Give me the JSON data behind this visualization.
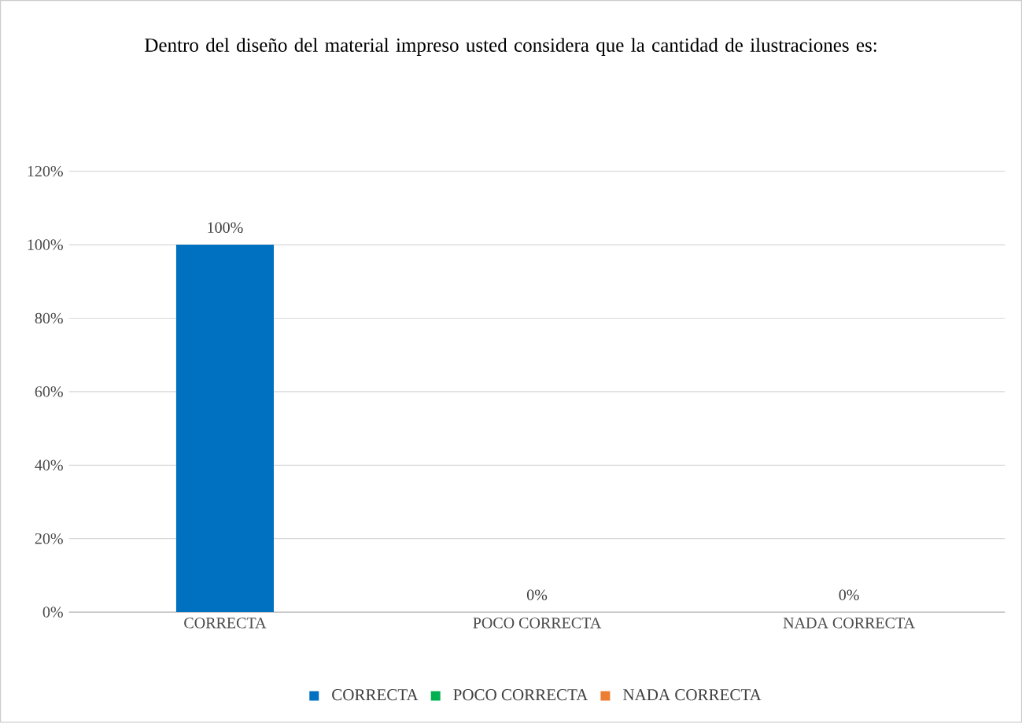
{
  "chart_data": {
    "type": "bar",
    "title": "Dentro del diseño del material impreso usted considera que la cantidad de ilustraciones es:",
    "categories": [
      "CORRECTA",
      "POCO CORRECTA",
      "NADA CORRECTA"
    ],
    "series": [
      {
        "name": "CORRECTA",
        "color": "#0070c0",
        "values": [
          100,
          null,
          null
        ],
        "value_labels": [
          "100%",
          null,
          null
        ]
      },
      {
        "name": "POCO CORRECTA",
        "color": "#00b050",
        "values": [
          null,
          0,
          null
        ],
        "value_labels": [
          null,
          "0%",
          null
        ]
      },
      {
        "name": "NADA CORRECTA",
        "color": "#ed7d31",
        "values": [
          null,
          null,
          0
        ],
        "value_labels": [
          null,
          null,
          "0%"
        ]
      }
    ],
    "ylim": [
      0,
      120
    ],
    "yticks": [
      {
        "value": 0,
        "label": "0%"
      },
      {
        "value": 20,
        "label": "20%"
      },
      {
        "value": 40,
        "label": "40%"
      },
      {
        "value": 60,
        "label": "60%"
      },
      {
        "value": 80,
        "label": "80%"
      },
      {
        "value": 100,
        "label": "100%"
      },
      {
        "value": 120,
        "label": "120%"
      }
    ],
    "grid": "y",
    "legend": "bottom"
  }
}
